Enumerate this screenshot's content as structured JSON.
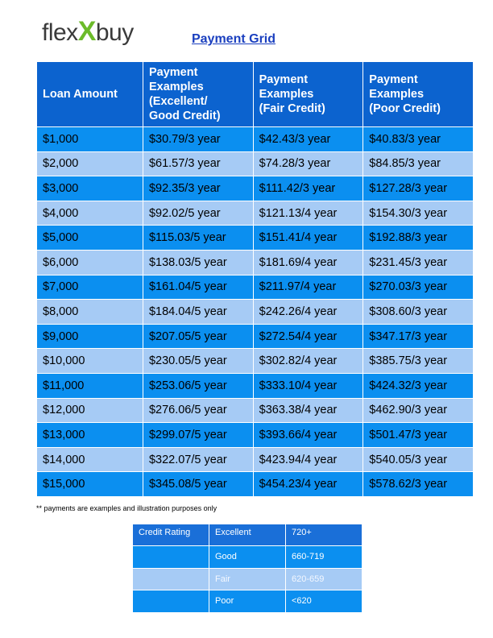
{
  "logo": [
    "flex",
    "X",
    "buy"
  ],
  "title": "Payment Grid",
  "table": {
    "header": [
      [
        "Loan Amount"
      ],
      [
        "Payment",
        "Examples",
        "(Excellent/",
        "Good Credit)"
      ],
      [
        "Payment",
        "Examples",
        "(Fair Credit)"
      ],
      [
        "Payment",
        "Examples",
        "(Poor Credit)"
      ]
    ],
    "rows": [
      [
        "$1,000",
        "$30.79/3 year",
        "$42.43/3 year",
        "$40.83/3 year"
      ],
      [
        "$2,000",
        "$61.57/3 year",
        "$74.28/3 year",
        "$84.85/3 year"
      ],
      [
        "$3,000",
        "$92.35/3 year",
        "$111.42/3 year",
        "$127.28/3 year"
      ],
      [
        "$4,000",
        "$92.02/5 year",
        "$121.13/4 year",
        "$154.30/3 year"
      ],
      [
        "$5,000",
        "$115.03/5 year",
        "$151.41/4 year",
        "$192.88/3 year"
      ],
      [
        "$6,000",
        "$138.03/5 year",
        "$181.69/4 year",
        "$231.45/3 year"
      ],
      [
        "$7,000",
        "$161.04/5 year",
        "$211.97/4 year",
        "$270.03/3 year"
      ],
      [
        "$8,000",
        "$184.04/5 year",
        "$242.26/4 year",
        "$308.60/3 year"
      ],
      [
        "$9,000",
        "$207.05/5 year",
        "$272.54/4 year",
        "$347.17/3 year"
      ],
      [
        "$10,000",
        "$230.05/5 year",
        "$302.82/4 year",
        "$385.75/3 year"
      ],
      [
        "$11,000",
        "$253.06/5 year",
        "$333.10/4 year",
        "$424.32/3 year"
      ],
      [
        "$12,000",
        "$276.06/5 year",
        "$363.38/4 year",
        "$462.90/3 year"
      ],
      [
        "$13,000",
        "$299.07/5 year",
        "$393.66/4 year",
        "$501.47/3 year"
      ],
      [
        "$14,000",
        "$322.07/5 year",
        "$423.94/4 year",
        "$540.05/3 year"
      ],
      [
        "$15,000",
        "$345.08/5 year",
        "$454.23/4 year",
        "$578.62/3 year"
      ]
    ]
  },
  "footnote": "** payments are examples and illustration purposes only",
  "credit_table": {
    "rows": [
      [
        "Credit Rating",
        "Excellent",
        "720+"
      ],
      [
        "",
        "Good",
        "660-719"
      ],
      [
        "",
        "Fair",
        "620-659"
      ],
      [
        "",
        "Poor",
        "<620"
      ]
    ]
  }
}
